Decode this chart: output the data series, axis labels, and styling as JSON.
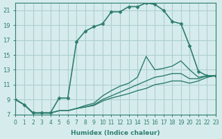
{
  "xlabel": "Humidex (Indice chaleur)",
  "ylabel": "",
  "bg_color": "#d6ecec",
  "grid_color": "#aecece",
  "line_color": "#2d7d6e",
  "xlim": [
    0,
    23
  ],
  "ylim": [
    7,
    22
  ],
  "yticks": [
    7,
    9,
    11,
    13,
    15,
    17,
    19,
    21
  ],
  "xticks": [
    0,
    1,
    2,
    3,
    4,
    5,
    6,
    7,
    8,
    9,
    10,
    11,
    12,
    13,
    14,
    15,
    16,
    17,
    18,
    19,
    20,
    21,
    22,
    23
  ],
  "series": [
    {
      "x": [
        0,
        1,
        2,
        3,
        4,
        5,
        6,
        7,
        8,
        9,
        10,
        11,
        12,
        13,
        14,
        15,
        16,
        17,
        18,
        19,
        20,
        21,
        22,
        23
      ],
      "y": [
        9.0,
        8.3,
        7.2,
        7.2,
        7.2,
        9.2,
        9.2,
        16.8,
        18.2,
        18.8,
        19.2,
        20.8,
        20.8,
        21.5,
        21.5,
        22.0,
        21.8,
        21.0,
        19.5,
        19.2,
        16.2,
        12.8,
        12.2,
        12.2
      ],
      "marker": "D",
      "markersize": 2.5,
      "linewidth": 1.2
    },
    {
      "x": [
        0,
        1,
        2,
        3,
        4,
        5,
        6,
        7,
        8,
        9,
        10,
        11,
        12,
        13,
        14,
        15,
        16,
        17,
        18,
        19,
        20,
        21,
        22,
        23
      ],
      "y": [
        9.0,
        8.3,
        7.2,
        7.2,
        7.2,
        7.5,
        7.5,
        7.8,
        8.2,
        8.5,
        9.5,
        10.2,
        10.8,
        11.2,
        12.0,
        14.8,
        13.0,
        13.2,
        13.5,
        14.2,
        13.0,
        12.0,
        12.2,
        12.2
      ],
      "marker": null,
      "markersize": 0,
      "linewidth": 1.0
    },
    {
      "x": [
        0,
        1,
        2,
        3,
        4,
        5,
        6,
        7,
        8,
        9,
        10,
        11,
        12,
        13,
        14,
        15,
        16,
        17,
        18,
        19,
        20,
        21,
        22,
        23
      ],
      "y": [
        9.0,
        8.3,
        7.2,
        7.2,
        7.2,
        7.5,
        7.5,
        7.8,
        8.0,
        8.3,
        9.0,
        9.5,
        10.0,
        10.5,
        11.0,
        11.5,
        12.0,
        12.2,
        12.5,
        12.5,
        11.8,
        11.8,
        12.2,
        12.2
      ],
      "marker": null,
      "markersize": 0,
      "linewidth": 1.0
    },
    {
      "x": [
        0,
        1,
        2,
        3,
        4,
        5,
        6,
        7,
        8,
        9,
        10,
        11,
        12,
        13,
        14,
        15,
        16,
        17,
        18,
        19,
        20,
        21,
        22,
        23
      ],
      "y": [
        9.0,
        8.3,
        7.2,
        7.2,
        7.2,
        7.5,
        7.5,
        7.8,
        8.0,
        8.2,
        8.8,
        9.2,
        9.5,
        9.8,
        10.2,
        10.5,
        11.0,
        11.2,
        11.5,
        11.5,
        11.2,
        11.5,
        12.0,
        12.2
      ],
      "marker": null,
      "markersize": 0,
      "linewidth": 1.0
    }
  ]
}
